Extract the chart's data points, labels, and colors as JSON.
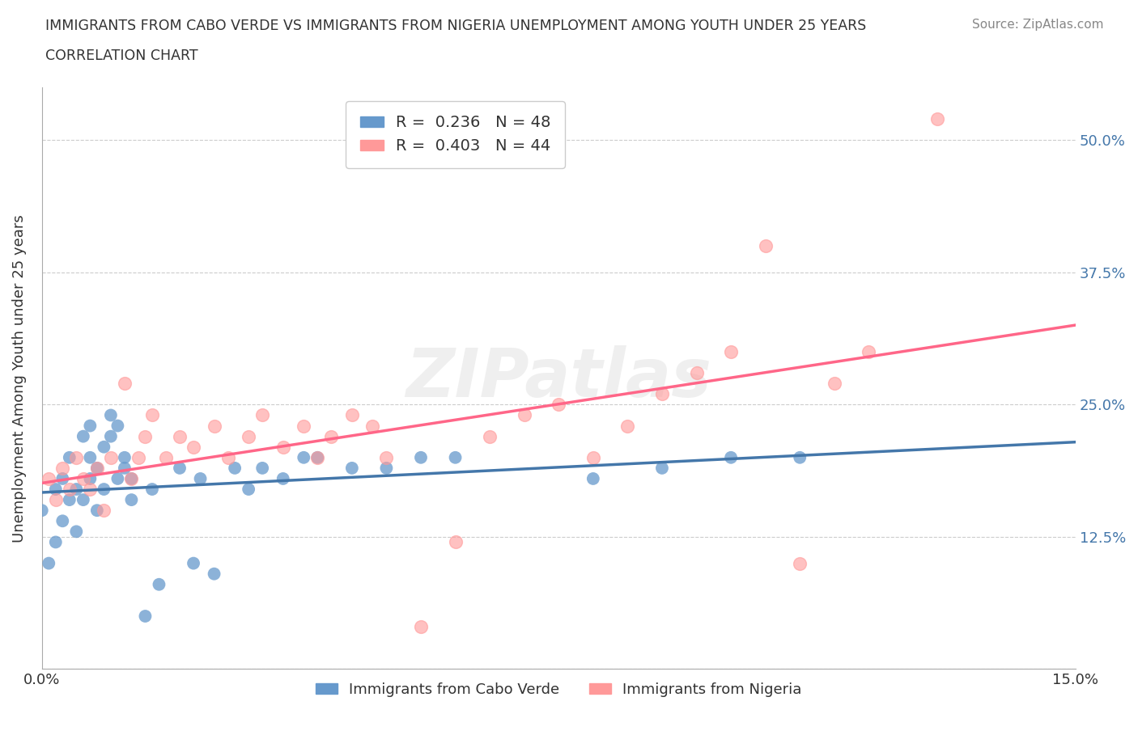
{
  "title_line1": "IMMIGRANTS FROM CABO VERDE VS IMMIGRANTS FROM NIGERIA UNEMPLOYMENT AMONG YOUTH UNDER 25 YEARS",
  "title_line2": "CORRELATION CHART",
  "source": "Source: ZipAtlas.com",
  "ylabel": "Unemployment Among Youth under 25 years",
  "xlim": [
    0.0,
    0.15
  ],
  "ylim": [
    0.0,
    0.55
  ],
  "ytick_positions": [
    0.0,
    0.125,
    0.25,
    0.375,
    0.5
  ],
  "ytick_labels": [
    "",
    "12.5%",
    "25.0%",
    "37.5%",
    "50.0%"
  ],
  "grid_color": "#cccccc",
  "background_color": "#ffffff",
  "watermark": "ZIPatlas",
  "legend1_label": "Immigrants from Cabo Verde",
  "legend2_label": "Immigrants from Nigeria",
  "R1": 0.236,
  "N1": 48,
  "R2": 0.403,
  "N2": 44,
  "color_blue": "#6699CC",
  "color_pink": "#FF9999",
  "color_blue_line": "#4477AA",
  "color_pink_line": "#FF6688",
  "cabo_verde_x": [
    0.0,
    0.001,
    0.002,
    0.002,
    0.003,
    0.003,
    0.004,
    0.004,
    0.005,
    0.005,
    0.006,
    0.006,
    0.007,
    0.007,
    0.007,
    0.008,
    0.008,
    0.009,
    0.009,
    0.01,
    0.01,
    0.011,
    0.011,
    0.012,
    0.012,
    0.013,
    0.013,
    0.015,
    0.016,
    0.017,
    0.02,
    0.022,
    0.023,
    0.025,
    0.028,
    0.03,
    0.032,
    0.035,
    0.038,
    0.04,
    0.045,
    0.05,
    0.055,
    0.06,
    0.08,
    0.09,
    0.1,
    0.11
  ],
  "cabo_verde_y": [
    0.15,
    0.1,
    0.17,
    0.12,
    0.18,
    0.14,
    0.2,
    0.16,
    0.17,
    0.13,
    0.22,
    0.16,
    0.18,
    0.2,
    0.23,
    0.19,
    0.15,
    0.21,
    0.17,
    0.22,
    0.24,
    0.18,
    0.23,
    0.2,
    0.19,
    0.16,
    0.18,
    0.05,
    0.17,
    0.08,
    0.19,
    0.1,
    0.18,
    0.09,
    0.19,
    0.17,
    0.19,
    0.18,
    0.2,
    0.2,
    0.19,
    0.19,
    0.2,
    0.2,
    0.18,
    0.19,
    0.2,
    0.2
  ],
  "nigeria_x": [
    0.001,
    0.002,
    0.003,
    0.004,
    0.005,
    0.006,
    0.007,
    0.008,
    0.009,
    0.01,
    0.012,
    0.013,
    0.014,
    0.015,
    0.016,
    0.018,
    0.02,
    0.022,
    0.025,
    0.027,
    0.03,
    0.032,
    0.035,
    0.038,
    0.04,
    0.042,
    0.045,
    0.048,
    0.05,
    0.055,
    0.06,
    0.065,
    0.07,
    0.075,
    0.08,
    0.085,
    0.09,
    0.095,
    0.1,
    0.105,
    0.11,
    0.115,
    0.12,
    0.13
  ],
  "nigeria_y": [
    0.18,
    0.16,
    0.19,
    0.17,
    0.2,
    0.18,
    0.17,
    0.19,
    0.15,
    0.2,
    0.27,
    0.18,
    0.2,
    0.22,
    0.24,
    0.2,
    0.22,
    0.21,
    0.23,
    0.2,
    0.22,
    0.24,
    0.21,
    0.23,
    0.2,
    0.22,
    0.24,
    0.23,
    0.2,
    0.04,
    0.12,
    0.22,
    0.24,
    0.25,
    0.2,
    0.23,
    0.26,
    0.28,
    0.3,
    0.4,
    0.1,
    0.27,
    0.3,
    0.52
  ]
}
